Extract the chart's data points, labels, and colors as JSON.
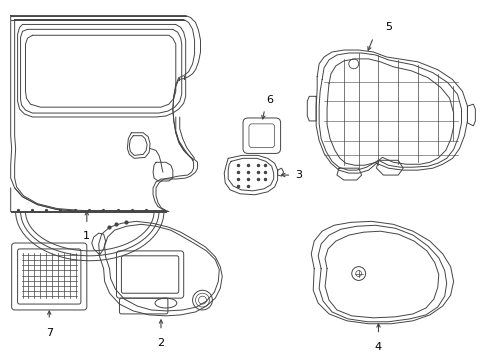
{
  "background_color": "#ffffff",
  "fig_width": 4.9,
  "fig_height": 3.6,
  "dpi": 100,
  "line_color": "#444444",
  "label_fontsize": 8,
  "stroke_width": 0.7
}
